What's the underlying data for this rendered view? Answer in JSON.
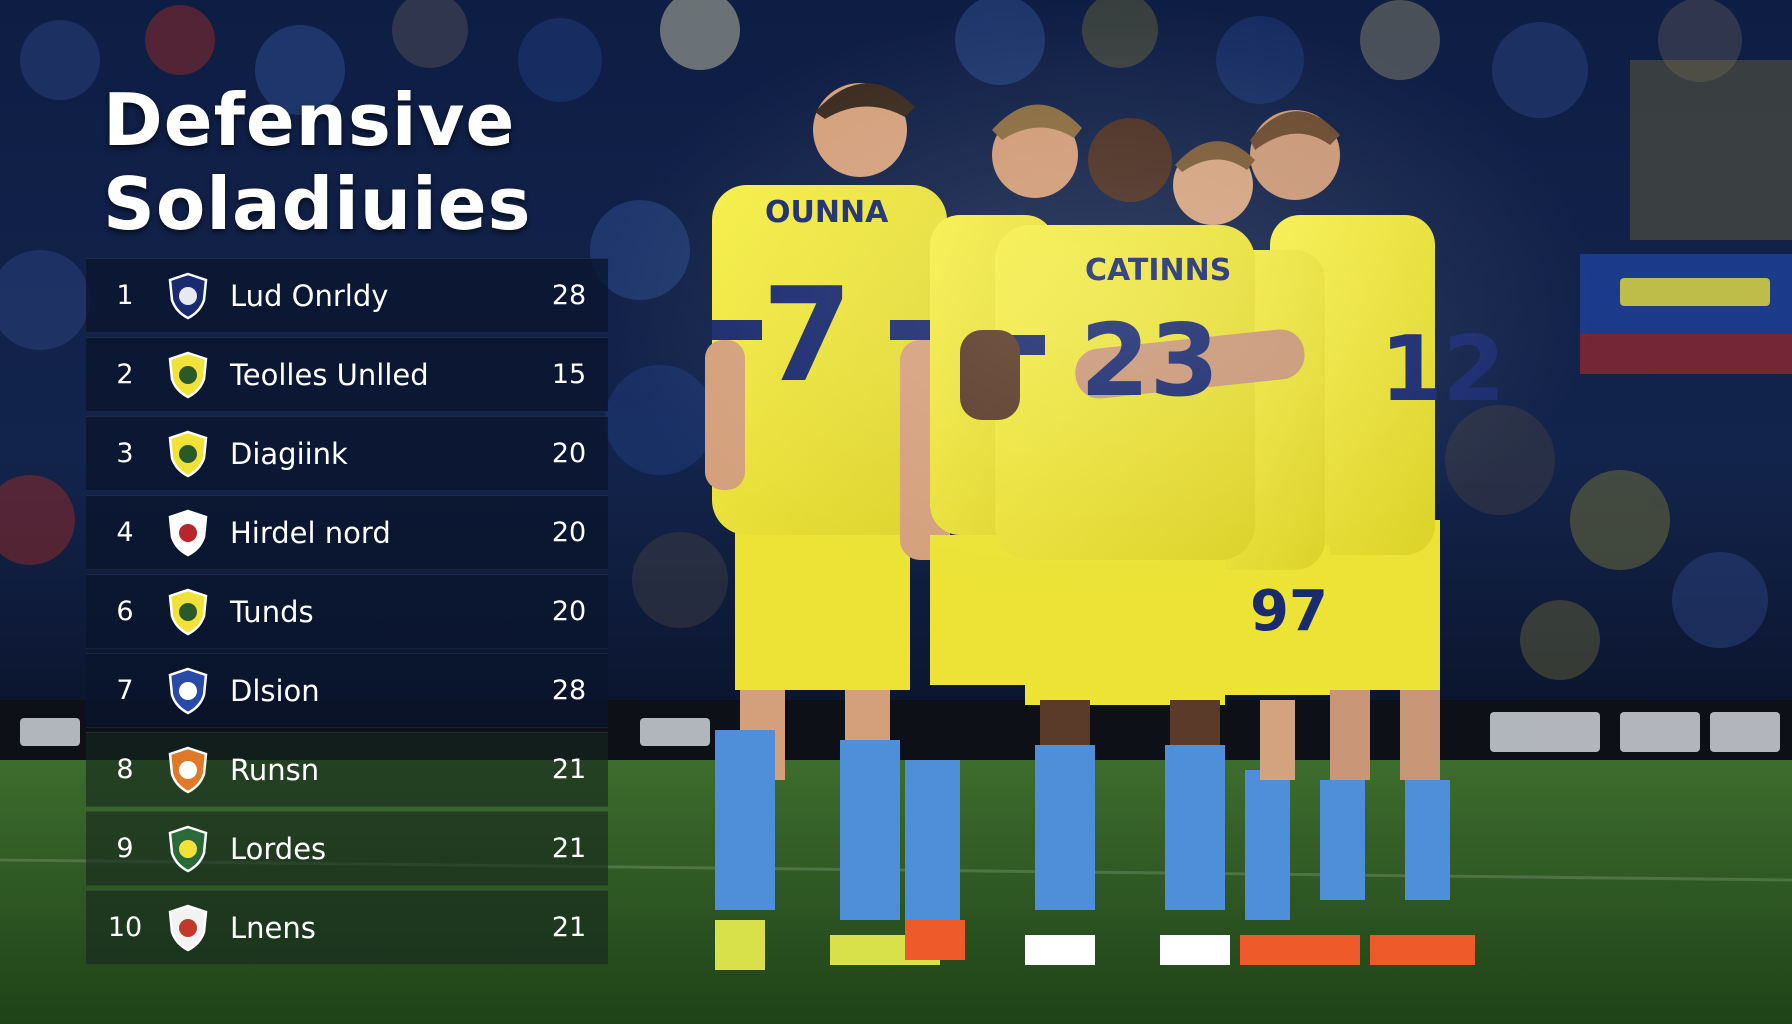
{
  "title_line1": "Defensive",
  "title_line2": "Soladiuies",
  "rows": [
    {
      "rank": "1",
      "team": "Lud Onrldy",
      "points": "28",
      "crest": "crest-navy-icon"
    },
    {
      "rank": "2",
      "team": "Teolles Unlled",
      "points": "15",
      "crest": "crest-yellow-icon"
    },
    {
      "rank": "3",
      "team": "Diagiink",
      "points": "20",
      "crest": "crest-yellow-icon"
    },
    {
      "rank": "4",
      "team": "Hirdel nord",
      "points": "20",
      "crest": "crest-red-icon"
    },
    {
      "rank": "6",
      "team": "Tunds",
      "points": "20",
      "crest": "crest-yellow-icon"
    },
    {
      "rank": "7",
      "team": "Dlsion",
      "points": "28",
      "crest": "crest-blue-icon"
    },
    {
      "rank": "8",
      "team": "Runsn",
      "points": "21",
      "crest": "crest-orange-icon"
    },
    {
      "rank": "9",
      "team": "Lordes",
      "points": "21",
      "crest": "crest-green-icon"
    },
    {
      "rank": "10",
      "team": "Lnens",
      "points": "21",
      "crest": "crest-white-icon"
    }
  ],
  "colors": {
    "kit_yellow": "#f1ea3c",
    "kit_navy": "#1a2a6e",
    "sock_blue": "#4f8ed8",
    "pitch_green": "#2f5c26",
    "row_dark": "#0d1a33"
  }
}
